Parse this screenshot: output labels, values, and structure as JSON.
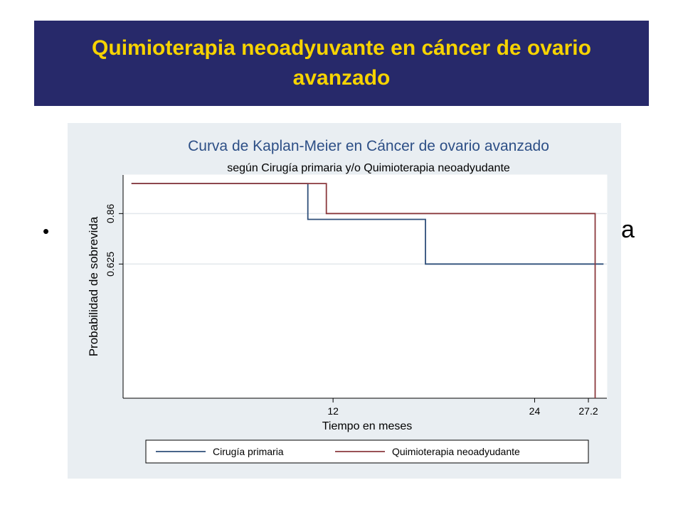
{
  "slide": {
    "title": "Quimioterapia neoadyuvante en cáncer de ovario avanzado",
    "bullet_symbol": "•",
    "bullet_tail": "a"
  },
  "colors": {
    "banner_bg": "#27296a",
    "title_text": "#f6d300",
    "chart_bg": "#e9eef2",
    "series_1": "#2f4f7a",
    "series_2": "#8b3a3e"
  },
  "chart_data": {
    "type": "line",
    "step": true,
    "title": "Curva de Kaplan-Meier en Cáncer de ovario avanzado",
    "subtitle": "según Cirugía primaria y/o Quimioterapia neoadyudante",
    "xlabel": "Tiempo en meses",
    "ylabel": "Probabilidad de sobrevida",
    "xlim": [
      -0.5,
      28.3
    ],
    "ylim": [
      0,
      1.04
    ],
    "xticks": [
      12,
      24,
      27.2
    ],
    "xtick_labels": [
      "12",
      "24",
      "27.2"
    ],
    "yticks": [
      0.625,
      0.86
    ],
    "ytick_labels": [
      "0.625",
      "0.86"
    ],
    "grid": "horizontal at y ticks",
    "legend_position": "bottom",
    "series": [
      {
        "name": "Cirugía primaria",
        "color": "#2f4f7a",
        "x": [
          0,
          10.5,
          10.5,
          17.5,
          17.5,
          28.1
        ],
        "y": [
          1.0,
          1.0,
          0.833,
          0.833,
          0.625,
          0.625
        ]
      },
      {
        "name": "Quimioterapia neoadyudante",
        "color": "#8b3a3e",
        "x": [
          0,
          11.6,
          11.6,
          27.6,
          27.6
        ],
        "y": [
          1.0,
          1.0,
          0.86,
          0.86,
          0.0
        ]
      }
    ]
  }
}
